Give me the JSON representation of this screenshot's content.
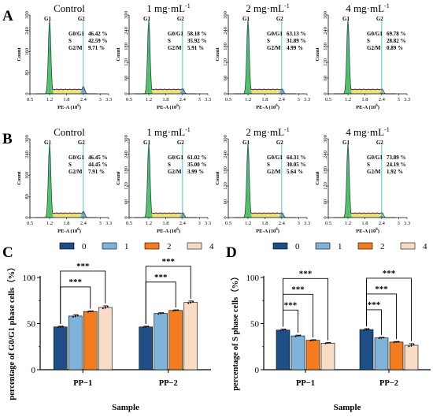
{
  "colors": {
    "c0": "#1f4e86",
    "c1": "#7fb3da",
    "c2": "#f47c20",
    "c3": "#f8dcc6",
    "hist_fill": "#59c95b",
    "hist_yellow": "#e8e05a",
    "hist_outline": "#2a2a2a",
    "s_curve": "#c06be0",
    "g2_peak": "#5aa0e0",
    "gate_line": "#22b4c8"
  },
  "chart_data": [
    {
      "panel": "A",
      "type": "histogram",
      "gate_labels": [
        "G1",
        "G2"
      ],
      "ylabel": "Count",
      "xlabel_main": "PE-A (10",
      "xlabel_sup": "6",
      "xlabel_close": ")",
      "xticks": [
        "0.5",
        "1.2",
        "1.8",
        "2.4",
        "3",
        "3.3"
      ],
      "xlim": [
        0.5,
        3.3
      ],
      "first_yticks": [
        "0",
        "80",
        "160",
        "240",
        "300"
      ],
      "other_yticks": [
        "0",
        "60",
        "120",
        "180",
        "240",
        "300"
      ],
      "ylim": [
        0,
        300
      ],
      "subplots": [
        {
          "title": "Control",
          "superscript": "",
          "stats": [
            {
              "label": "G0/G1",
              "value": "46.42 %"
            },
            {
              "label": "S",
              "value": "42.59 %"
            },
            {
              "label": "G2/M",
              "value": "9.71  %"
            }
          ],
          "g1_peak_height": 280,
          "g2_peak_height": 28
        },
        {
          "title": "1 mg·mL",
          "superscript": "-1",
          "stats": [
            {
              "label": "G0/G1",
              "value": "58.18 %"
            },
            {
              "label": "S",
              "value": "35.92 %"
            },
            {
              "label": "G2/M",
              "value": "5.91  %"
            }
          ],
          "g1_peak_height": 280,
          "g2_peak_height": 20
        },
        {
          "title": "2 mg·mL",
          "superscript": "-1",
          "stats": [
            {
              "label": "G0/G1",
              "value": "63.13 %"
            },
            {
              "label": "S",
              "value": "31.89 %"
            },
            {
              "label": "G2/M",
              "value": "4.99  %"
            }
          ],
          "g1_peak_height": 280,
          "g2_peak_height": 18
        },
        {
          "title": "4 mg·mL",
          "superscript": "-1",
          "stats": [
            {
              "label": "G0/G1",
              "value": "69.78 %"
            },
            {
              "label": "S",
              "value": "28.82 %"
            },
            {
              "label": "G2/M",
              "value": "0.89  %"
            }
          ],
          "g1_peak_height": 280,
          "g2_peak_height": 8
        }
      ]
    },
    {
      "panel": "B",
      "type": "histogram",
      "gate_labels": [
        "G1",
        "G2"
      ],
      "ylabel": "Count",
      "xlabel_main": "PE-A (10",
      "xlabel_sup": "6",
      "xlabel_close": ")",
      "xticks": [
        "0.5",
        "1.2",
        "1.8",
        "2.4",
        "3",
        "3.3"
      ],
      "xlim": [
        0.5,
        3.3
      ],
      "first_yticks": [
        "0",
        "80",
        "160",
        "240",
        "300"
      ],
      "other_yticks": [
        "0",
        "60",
        "120",
        "180",
        "240",
        "300"
      ],
      "ylim": [
        0,
        300
      ],
      "subplots": [
        {
          "title": "Control",
          "superscript": "",
          "stats": [
            {
              "label": "G0/G1",
              "value": "46.45 %"
            },
            {
              "label": "S",
              "value": "44.45 %"
            },
            {
              "label": "G2/M",
              "value": "7.91 %"
            }
          ],
          "g1_peak_height": 280,
          "g2_peak_height": 24
        },
        {
          "title": "1 mg·mL",
          "superscript": "-1",
          "stats": [
            {
              "label": "G0/G1",
              "value": "61.02 %"
            },
            {
              "label": "S",
              "value": "35.00 %"
            },
            {
              "label": "G2/M",
              "value": "3.99 %"
            }
          ],
          "g1_peak_height": 280,
          "g2_peak_height": 16
        },
        {
          "title": "2 mg·mL",
          "superscript": "-1",
          "stats": [
            {
              "label": "G0/G1",
              "value": "64.31 %"
            },
            {
              "label": "S",
              "value": "30.05 %"
            },
            {
              "label": "G2/M",
              "value": "5.64 %"
            }
          ],
          "g1_peak_height": 280,
          "g2_peak_height": 18
        },
        {
          "title": "4 mg·mL",
          "superscript": "-1",
          "stats": [
            {
              "label": "G0/G1",
              "value": "73.89 %"
            },
            {
              "label": "S",
              "value": "24.19 %"
            },
            {
              "label": "G2/M",
              "value": "1.92 %"
            }
          ],
          "g1_peak_height": 280,
          "g2_peak_height": 10
        }
      ]
    },
    {
      "panel": "C",
      "type": "bar",
      "legend": [
        "0",
        "1",
        "2",
        "4"
      ],
      "legend_placement": "top",
      "categories": [
        "PP−1",
        "PP−2"
      ],
      "series": [
        {
          "name": "0",
          "values": [
            46.4,
            46.4
          ],
          "errors": [
            0.8,
            0.8
          ]
        },
        {
          "name": "1",
          "values": [
            58.2,
            61.0
          ],
          "errors": [
            1.5,
            0.8
          ]
        },
        {
          "name": "2",
          "values": [
            63.1,
            64.3
          ],
          "errors": [
            0.6,
            0.6
          ]
        },
        {
          "name": "4",
          "values": [
            67.5,
            73.0
          ],
          "errors": [
            1.8,
            1.5
          ]
        }
      ],
      "ylim": [
        0,
        100
      ],
      "yticks": [
        "0",
        "50",
        "100"
      ],
      "ylabel": "percentage of G0/G1 phase cells（%）",
      "xlabel": "Sample",
      "significance": [
        {
          "category": 0,
          "from": 0,
          "to": 2,
          "level": 1,
          "label": "***"
        },
        {
          "category": 0,
          "from": 0,
          "to": 3,
          "level": 2,
          "label": "***"
        },
        {
          "category": 1,
          "from": 0,
          "to": 2,
          "level": 1,
          "label": "***"
        },
        {
          "category": 1,
          "from": 0,
          "to": 3,
          "level": 2,
          "label": "***"
        }
      ]
    },
    {
      "panel": "D",
      "type": "bar",
      "legend": [
        "0",
        "1",
        "2",
        "4"
      ],
      "legend_placement": "top",
      "categories": [
        "PP−1",
        "PP−2"
      ],
      "series": [
        {
          "name": "0",
          "values": [
            43.0,
            43.5
          ],
          "errors": [
            1.2,
            1.0
          ]
        },
        {
          "name": "1",
          "values": [
            36.7,
            34.5
          ],
          "errors": [
            0.8,
            0.6
          ]
        },
        {
          "name": "2",
          "values": [
            31.9,
            30.0
          ],
          "errors": [
            0.6,
            0.6
          ]
        },
        {
          "name": "4",
          "values": [
            28.8,
            26.5
          ],
          "errors": [
            0.6,
            1.8
          ]
        }
      ],
      "ylim": [
        0,
        100
      ],
      "yticks": [
        "0",
        "50",
        "100"
      ],
      "ylabel": "percentage of S phase cells（%）",
      "xlabel": "Sample",
      "significance": [
        {
          "category": 0,
          "from": 0,
          "to": 1,
          "level": 1,
          "label": "***"
        },
        {
          "category": 0,
          "from": 0,
          "to": 2,
          "level": 2,
          "label": "***"
        },
        {
          "category": 0,
          "from": 0,
          "to": 3,
          "level": 3,
          "label": "***"
        },
        {
          "category": 1,
          "from": 0,
          "to": 1,
          "level": 1,
          "label": "***"
        },
        {
          "category": 1,
          "from": 0,
          "to": 2,
          "level": 2,
          "label": "***"
        },
        {
          "category": 1,
          "from": 0,
          "to": 3,
          "level": 3,
          "label": "***"
        }
      ]
    }
  ]
}
